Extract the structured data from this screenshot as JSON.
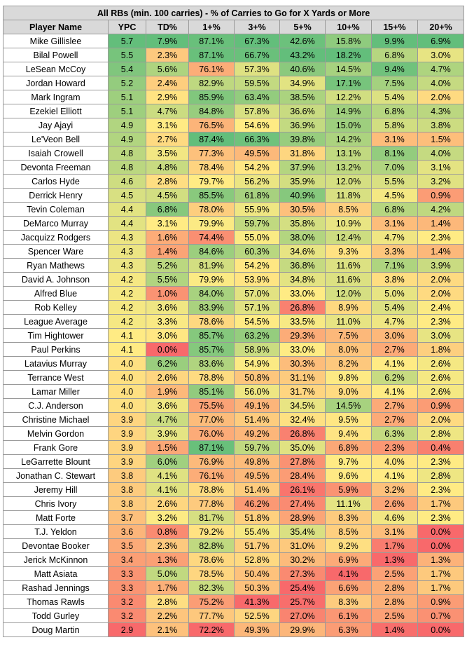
{
  "chart_data": {
    "type": "table",
    "title": "All RBs (min. 100 carries) - % of Carries to Go for X Yards or More",
    "columns": [
      "Player Name",
      "YPC",
      "TD%",
      "1+%",
      "3+%",
      "5+%",
      "10+%",
      "15+%",
      "20+%"
    ],
    "color_scale": {
      "low": "#f8696b",
      "mid": "#ffeb84",
      "high": "#63be7b"
    },
    "rows": [
      [
        "Mike Gillislee",
        "5.7",
        "7.9%",
        "87.1%",
        "67.3%",
        "42.6%",
        "15.8%",
        "9.9%",
        "6.9%"
      ],
      [
        "Bilal Powell",
        "5.5",
        "2.3%",
        "87.1%",
        "66.7%",
        "43.2%",
        "18.2%",
        "6.8%",
        "3.0%"
      ],
      [
        "LeSean McCoy",
        "5.4",
        "5.6%",
        "76.1%",
        "57.3%",
        "40.6%",
        "14.5%",
        "9.4%",
        "4.7%"
      ],
      [
        "Jordan Howard",
        "5.2",
        "2.4%",
        "82.9%",
        "59.5%",
        "34.9%",
        "17.1%",
        "7.5%",
        "4.0%"
      ],
      [
        "Mark Ingram",
        "5.1",
        "2.9%",
        "85.9%",
        "63.4%",
        "38.5%",
        "12.2%",
        "5.4%",
        "2.0%"
      ],
      [
        "Ezekiel Elliott",
        "5.1",
        "4.7%",
        "84.8%",
        "57.8%",
        "36.6%",
        "14.9%",
        "6.8%",
        "4.3%"
      ],
      [
        "Jay Ajayi",
        "4.9",
        "3.1%",
        "76.5%",
        "54.6%",
        "36.9%",
        "15.0%",
        "5.8%",
        "3.8%"
      ],
      [
        "Le'Veon Bell",
        "4.9",
        "2.7%",
        "87.4%",
        "66.3%",
        "39.8%",
        "14.2%",
        "3.1%",
        "1.5%"
      ],
      [
        "Isaiah Crowell",
        "4.8",
        "3.5%",
        "77.3%",
        "49.5%",
        "31.8%",
        "13.1%",
        "8.1%",
        "4.0%"
      ],
      [
        "Devonta Freeman",
        "4.8",
        "4.8%",
        "78.4%",
        "54.2%",
        "37.9%",
        "13.2%",
        "7.0%",
        "3.1%"
      ],
      [
        "Carlos Hyde",
        "4.6",
        "2.8%",
        "79.7%",
        "56.2%",
        "35.9%",
        "12.0%",
        "5.5%",
        "3.2%"
      ],
      [
        "Derrick Henry",
        "4.5",
        "4.5%",
        "85.5%",
        "61.8%",
        "40.9%",
        "11.8%",
        "4.5%",
        "0.9%"
      ],
      [
        "Tevin Coleman",
        "4.4",
        "6.8%",
        "78.0%",
        "55.9%",
        "30.5%",
        "8.5%",
        "6.8%",
        "4.2%"
      ],
      [
        "DeMarco Murray",
        "4.4",
        "3.1%",
        "79.9%",
        "59.7%",
        "35.8%",
        "10.9%",
        "3.1%",
        "1.4%"
      ],
      [
        "Jacquizz Rodgers",
        "4.3",
        "1.6%",
        "74.4%",
        "55.0%",
        "38.0%",
        "12.4%",
        "4.7%",
        "2.3%"
      ],
      [
        "Spencer Ware",
        "4.3",
        "1.4%",
        "84.6%",
        "60.3%",
        "34.6%",
        "9.3%",
        "3.3%",
        "1.4%"
      ],
      [
        "Ryan Mathews",
        "4.3",
        "5.2%",
        "81.9%",
        "54.2%",
        "36.8%",
        "11.6%",
        "7.1%",
        "3.9%"
      ],
      [
        "David A. Johnson",
        "4.2",
        "5.5%",
        "79.9%",
        "53.9%",
        "34.8%",
        "11.6%",
        "3.8%",
        "2.0%"
      ],
      [
        "Alfred Blue",
        "4.2",
        "1.0%",
        "84.0%",
        "57.0%",
        "33.0%",
        "12.0%",
        "5.0%",
        "2.0%"
      ],
      [
        "Rob Kelley",
        "4.2",
        "3.6%",
        "83.9%",
        "57.1%",
        "26.8%",
        "8.9%",
        "5.4%",
        "2.4%"
      ],
      [
        "League Average",
        "4.2",
        "3.3%",
        "78.6%",
        "54.5%",
        "33.5%",
        "11.0%",
        "4.7%",
        "2.3%"
      ],
      [
        "Tim Hightower",
        "4.1",
        "3.0%",
        "85.7%",
        "63.2%",
        "29.3%",
        "7.5%",
        "3.0%",
        "3.0%"
      ],
      [
        "Paul Perkins",
        "4.1",
        "0.0%",
        "85.7%",
        "58.9%",
        "33.0%",
        "8.0%",
        "2.7%",
        "1.8%"
      ],
      [
        "Latavius Murray",
        "4.0",
        "6.2%",
        "83.6%",
        "54.9%",
        "30.3%",
        "8.2%",
        "4.1%",
        "2.6%"
      ],
      [
        "Terrance West",
        "4.0",
        "2.6%",
        "78.8%",
        "50.8%",
        "31.1%",
        "9.8%",
        "6.2%",
        "2.6%"
      ],
      [
        "Lamar Miller",
        "4.0",
        "1.9%",
        "85.1%",
        "56.0%",
        "31.7%",
        "9.0%",
        "4.1%",
        "2.6%"
      ],
      [
        "C.J. Anderson",
        "4.0",
        "3.6%",
        "75.5%",
        "49.1%",
        "34.5%",
        "14.5%",
        "2.7%",
        "0.9%"
      ],
      [
        "Christine Michael",
        "3.9",
        "4.7%",
        "77.0%",
        "51.4%",
        "32.4%",
        "9.5%",
        "2.7%",
        "2.0%"
      ],
      [
        "Melvin Gordon",
        "3.9",
        "3.9%",
        "76.0%",
        "49.2%",
        "26.8%",
        "9.4%",
        "6.3%",
        "2.8%"
      ],
      [
        "Frank Gore",
        "3.9",
        "1.5%",
        "87.1%",
        "59.7%",
        "35.0%",
        "6.8%",
        "2.3%",
        "0.4%"
      ],
      [
        "LeGarrette Blount",
        "3.9",
        "6.0%",
        "76.9%",
        "49.8%",
        "27.8%",
        "9.7%",
        "4.0%",
        "2.3%"
      ],
      [
        "Jonathan C. Stewart",
        "3.8",
        "4.1%",
        "76.1%",
        "49.5%",
        "28.4%",
        "9.6%",
        "4.1%",
        "2.8%"
      ],
      [
        "Jeremy Hill",
        "3.8",
        "4.1%",
        "78.8%",
        "51.4%",
        "26.1%",
        "5.9%",
        "3.2%",
        "2.3%"
      ],
      [
        "Chris Ivory",
        "3.8",
        "2.6%",
        "77.8%",
        "46.2%",
        "27.4%",
        "11.1%",
        "2.6%",
        "1.7%"
      ],
      [
        "Matt Forte",
        "3.7",
        "3.2%",
        "81.7%",
        "51.8%",
        "28.9%",
        "8.3%",
        "4.6%",
        "2.3%"
      ],
      [
        "T.J. Yeldon",
        "3.6",
        "0.8%",
        "79.2%",
        "55.4%",
        "35.4%",
        "8.5%",
        "3.1%",
        "0.0%"
      ],
      [
        "Devontae Booker",
        "3.5",
        "2.3%",
        "82.8%",
        "51.7%",
        "31.0%",
        "9.2%",
        "1.7%",
        "0.0%"
      ],
      [
        "Jerick McKinnon",
        "3.4",
        "1.3%",
        "78.6%",
        "52.8%",
        "30.2%",
        "6.9%",
        "1.3%",
        "1.3%"
      ],
      [
        "Matt Asiata",
        "3.3",
        "5.0%",
        "78.5%",
        "50.4%",
        "27.3%",
        "4.1%",
        "2.5%",
        "1.7%"
      ],
      [
        "Rashad Jennings",
        "3.3",
        "1.7%",
        "82.3%",
        "50.3%",
        "25.4%",
        "6.6%",
        "2.8%",
        "1.7%"
      ],
      [
        "Thomas Rawls",
        "3.2",
        "2.8%",
        "75.2%",
        "41.3%",
        "25.7%",
        "8.3%",
        "2.8%",
        "0.9%"
      ],
      [
        "Todd Gurley",
        "3.2",
        "2.2%",
        "77.7%",
        "52.5%",
        "27.0%",
        "6.1%",
        "2.5%",
        "0.7%"
      ],
      [
        "Doug Martin",
        "2.9",
        "2.1%",
        "72.2%",
        "49.3%",
        "29.9%",
        "6.3%",
        "1.4%",
        "0.0%"
      ]
    ]
  }
}
